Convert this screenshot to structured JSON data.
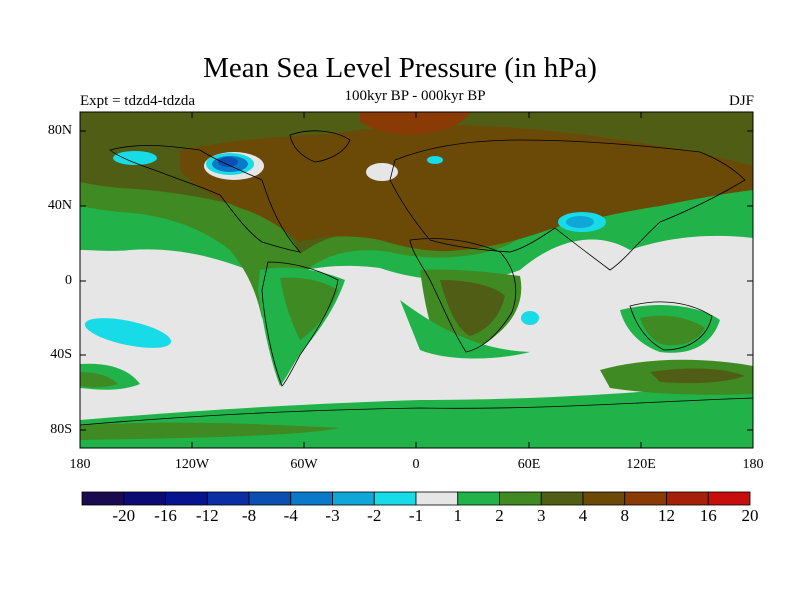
{
  "title": "Mean Sea Level Pressure (in hPa)",
  "subtitle": "100kyr BP - 000kyr BP",
  "experiment": "Expt = tdzd4-tdzda",
  "season": "DJF",
  "lat_labels": [
    "80N",
    "40N",
    "0",
    "40S",
    "80S"
  ],
  "lon_labels": [
    "180",
    "120W",
    "60W",
    "0",
    "60E",
    "120E",
    "180"
  ],
  "colorbar": {
    "colors": [
      "#1a0a4f",
      "#0c0a73",
      "#08148f",
      "#0a2ea4",
      "#0b4fb3",
      "#0b79c9",
      "#11a6d8",
      "#17dbe6",
      "#e6e6e6",
      "#21b34a",
      "#3f8a22",
      "#505d14",
      "#6b4a08",
      "#8a3a05",
      "#a61f08",
      "#c80d0d"
    ],
    "labels": [
      "-20",
      "-16",
      "-12",
      "-8",
      "-4",
      "-3",
      "-2",
      "-1",
      "1",
      "2",
      "3",
      "4",
      "8",
      "12",
      "16",
      "20"
    ]
  }
}
